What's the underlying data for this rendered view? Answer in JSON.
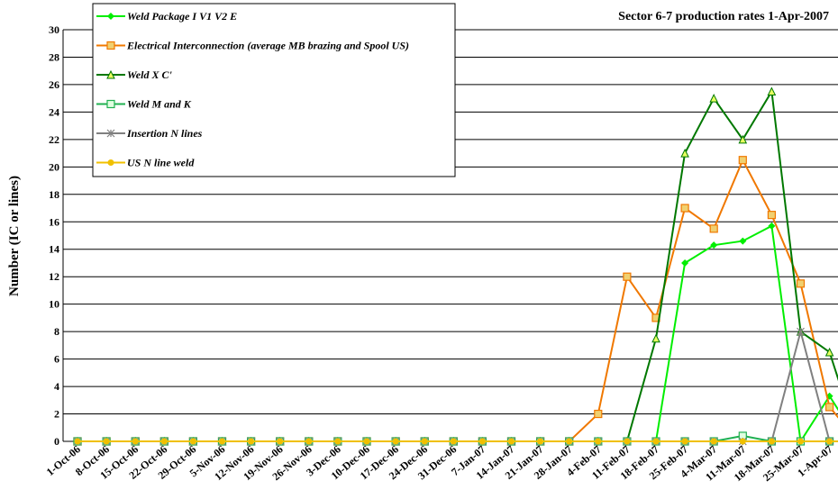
{
  "chart_data": {
    "type": "line",
    "title": "Sector 6-7 production rates 1-Apr-2007",
    "y_label": "Number (IC or lines)",
    "categories": [
      "1-Oct-06",
      "8-Oct-06",
      "15-Oct-06",
      "22-Oct-06",
      "29-Oct-06",
      "5-Nov-06",
      "12-Nov-06",
      "19-Nov-06",
      "26-Nov-06",
      "3-Dec-06",
      "10-Dec-06",
      "17-Dec-06",
      "24-Dec-06",
      "31-Dec-06",
      "7-Jan-07",
      "14-Jan-07",
      "21-Jan-07",
      "28-Jan-07",
      "4-Feb-07",
      "11-Feb-07",
      "18-Feb-07",
      "25-Feb-07",
      "4-Mar-07",
      "11-Mar-07",
      "18-Mar-07",
      "25-Mar-07",
      "1-Apr-07",
      null
    ],
    "series": [
      {
        "name": "Weld Package I V1 V2  E",
        "color": "#00ee00",
        "marker": "diamond",
        "values": [
          0,
          0,
          0,
          0,
          0,
          0,
          0,
          0,
          0,
          0,
          0,
          0,
          0,
          0,
          0,
          0,
          0,
          0,
          0,
          0,
          0,
          13,
          14.3,
          14.6,
          15.7,
          0,
          3.3,
          0
        ]
      },
      {
        "name": "Electrical Interconnection (average MB brazing and Spool US)",
        "color": "#f07800",
        "marker": "square",
        "values": [
          0,
          0,
          0,
          0,
          0,
          0,
          0,
          0,
          0,
          0,
          0,
          0,
          0,
          0,
          0,
          0,
          0,
          0,
          2,
          12,
          9,
          17,
          15.5,
          20.5,
          16.5,
          11.5,
          2.5,
          0
        ]
      },
      {
        "name": "Weld  X C'",
        "color": "#007800",
        "marker": "triangle",
        "values": [
          0,
          0,
          0,
          0,
          0,
          0,
          0,
          0,
          0,
          0,
          0,
          0,
          0,
          0,
          0,
          0,
          0,
          0,
          0,
          0,
          7.5,
          21,
          25,
          22,
          25.5,
          8,
          6.5,
          0
        ]
      },
      {
        "name": "Weld M and K",
        "color": "#20b050",
        "marker": "hollow-square",
        "values": [
          0,
          0,
          0,
          0,
          0,
          0,
          0,
          0,
          0,
          0,
          0,
          0,
          0,
          0,
          0,
          0,
          0,
          0,
          0,
          0,
          0,
          0,
          0,
          0.4,
          0,
          0,
          0,
          0
        ]
      },
      {
        "name": "Insertion N lines",
        "color": "#808080",
        "marker": "star",
        "values": [
          0,
          0,
          0,
          0,
          0,
          0,
          0,
          0,
          0,
          0,
          0,
          0,
          0,
          0,
          0,
          0,
          0,
          0,
          0,
          0,
          0,
          0,
          0,
          0,
          0,
          8,
          0,
          0
        ]
      },
      {
        "name": "US N line weld",
        "color": "#f0c000",
        "marker": "circle",
        "values": [
          0,
          0,
          0,
          0,
          0,
          0,
          0,
          0,
          0,
          0,
          0,
          0,
          0,
          0,
          0,
          0,
          0,
          0,
          0,
          0,
          0,
          0,
          0,
          0,
          0,
          0,
          0,
          0
        ]
      }
    ],
    "ylim": [
      0,
      30
    ],
    "yticks": [
      0,
      2,
      4,
      6,
      8,
      10,
      12,
      14,
      16,
      18,
      20,
      22,
      24,
      26,
      28,
      30
    ],
    "grid": true,
    "legend": "upper-left"
  }
}
